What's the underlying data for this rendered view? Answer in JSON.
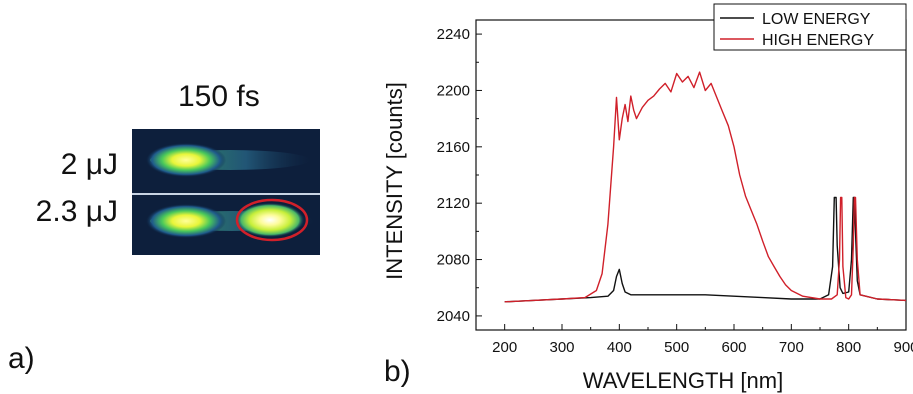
{
  "panel_a": {
    "letter": "a)",
    "title": "150 fs",
    "rows": [
      {
        "label": "2 μJ"
      },
      {
        "label": "2.3 μJ"
      }
    ],
    "highlight_color": "#d0202a"
  },
  "panel_b": {
    "letter": "b)"
  },
  "chart_data": {
    "type": "line",
    "title": "",
    "xlabel": "WAVELENGTH [nm]",
    "ylabel": "INTENSITY [counts]",
    "xlim": [
      150,
      900
    ],
    "ylim": [
      2030,
      2250
    ],
    "xticks": [
      200,
      300,
      400,
      500,
      600,
      700,
      800,
      900
    ],
    "yticks": [
      2040,
      2080,
      2120,
      2160,
      2200,
      2240
    ],
    "grid": false,
    "legend": "top-right",
    "series": [
      {
        "name": "LOW ENERGY",
        "color": "#111111",
        "x": [
          200,
          250,
          300,
          350,
          380,
          390,
          395,
          400,
          405,
          410,
          420,
          450,
          500,
          550,
          600,
          650,
          700,
          750,
          765,
          772,
          775,
          778,
          780,
          785,
          790,
          800,
          805,
          808,
          810,
          812,
          815,
          820,
          850,
          900
        ],
        "y": [
          2050,
          2051,
          2052,
          2053,
          2054,
          2058,
          2068,
          2073,
          2063,
          2057,
          2055,
          2055,
          2055,
          2055,
          2054,
          2053,
          2052,
          2052,
          2055,
          2075,
          2124,
          2124,
          2090,
          2060,
          2056,
          2057,
          2080,
          2124,
          2124,
          2100,
          2065,
          2055,
          2052,
          2051
        ]
      },
      {
        "name": "HIGH ENERGY",
        "color": "#d0202a",
        "x": [
          200,
          250,
          300,
          340,
          360,
          370,
          380,
          390,
          395,
          400,
          405,
          410,
          415,
          420,
          425,
          430,
          440,
          450,
          460,
          470,
          480,
          490,
          500,
          510,
          520,
          530,
          540,
          550,
          560,
          570,
          580,
          590,
          600,
          610,
          620,
          630,
          640,
          650,
          660,
          670,
          680,
          690,
          700,
          720,
          750,
          770,
          780,
          784,
          786,
          788,
          790,
          795,
          800,
          805,
          808,
          810,
          812,
          815,
          820,
          850,
          900
        ],
        "y": [
          2050,
          2051,
          2052,
          2053,
          2058,
          2070,
          2105,
          2160,
          2195,
          2165,
          2180,
          2190,
          2178,
          2196,
          2186,
          2180,
          2188,
          2193,
          2196,
          2201,
          2205,
          2199,
          2212,
          2206,
          2210,
          2202,
          2213,
          2200,
          2205,
          2195,
          2185,
          2175,
          2160,
          2140,
          2125,
          2115,
          2105,
          2093,
          2082,
          2075,
          2068,
          2062,
          2058,
          2054,
          2052,
          2052,
          2055,
          2080,
          2124,
          2124,
          2075,
          2053,
          2052,
          2055,
          2090,
          2124,
          2124,
          2080,
          2055,
          2052,
          2051
        ]
      }
    ]
  }
}
